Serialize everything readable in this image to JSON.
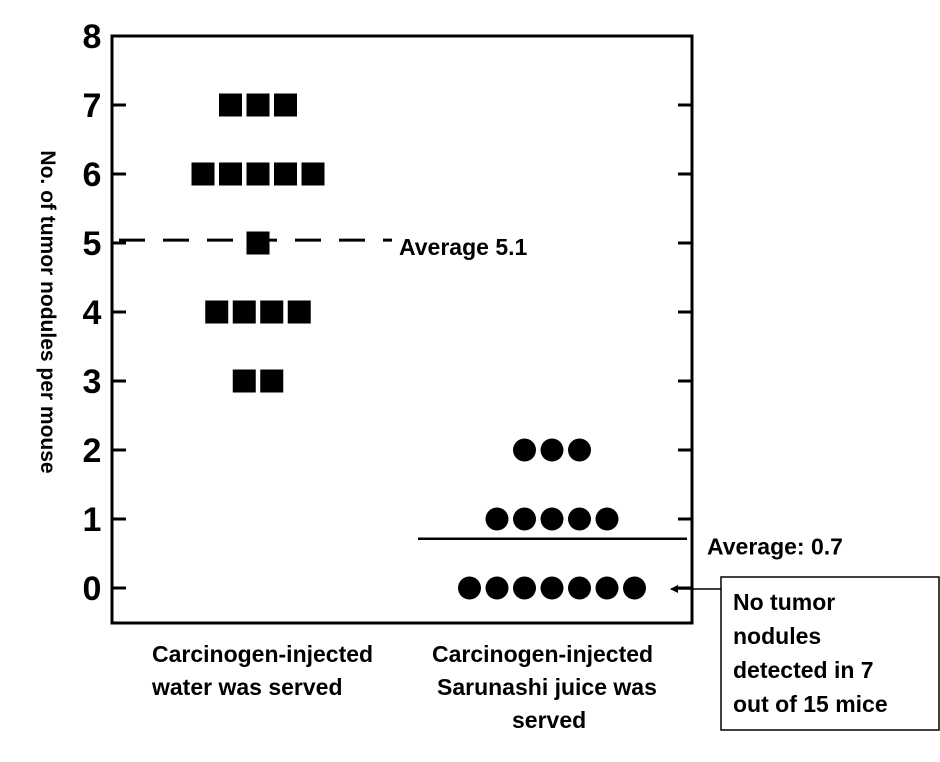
{
  "chart_data": {
    "type": "scatter",
    "ylabel": "No. of tumor nodules per mouse",
    "ylim": [
      -0.5,
      8
    ],
    "yticks": [
      0,
      1,
      2,
      3,
      4,
      5,
      6,
      7,
      8
    ],
    "yticklabels": [
      "0",
      "1",
      "2",
      "3",
      "4",
      "5",
      "6",
      "7",
      "8"
    ],
    "groups": [
      {
        "label": [
          "Carcinogen-injected",
          "water was served"
        ],
        "marker": "square",
        "points": [
          {
            "y": 7,
            "count": 3
          },
          {
            "y": 6,
            "count": 5
          },
          {
            "y": 5,
            "count": 1
          },
          {
            "y": 4,
            "count": 4
          },
          {
            "y": 3,
            "count": 2
          }
        ],
        "average": 5.1,
        "average_label": "Average 5.1",
        "average_style": "dashed"
      },
      {
        "label": [
          "Carcinogen-injected",
          "Sarunashi juice was",
          "served"
        ],
        "marker": "circle",
        "points": [
          {
            "y": 2,
            "count": 3
          },
          {
            "y": 1,
            "count": 5
          },
          {
            "y": 0,
            "count": 7
          }
        ],
        "average": 0.7,
        "average_label": "Average: 0.7",
        "average_style": "solid"
      }
    ],
    "annotation": {
      "lines": [
        "No tumor",
        "nodules",
        "detected in 7",
        "out of 15 mice"
      ]
    }
  }
}
